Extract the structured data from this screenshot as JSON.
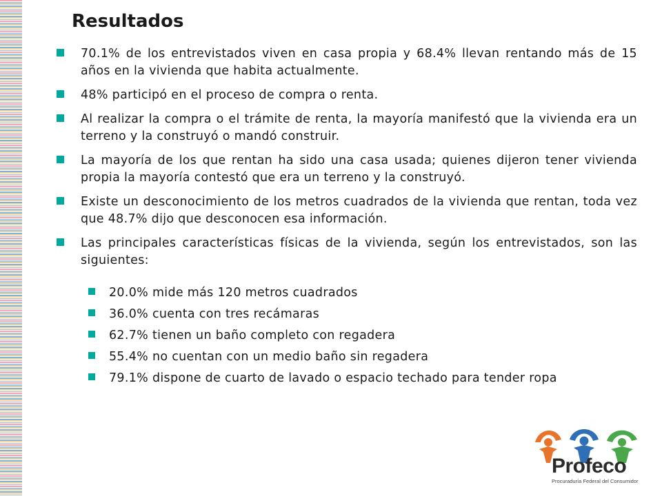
{
  "slide": {
    "title": "Resultados",
    "bullets": [
      "70.1% de los entrevistados viven en casa propia y 68.4% llevan rentando más de 15 años en la vivienda que habita actualmente.",
      "48% participó en el proceso de compra o renta.",
      "Al realizar la compra o el trámite de renta, la mayoría manifestó que la vivienda era un terreno y la construyó o mandó construir.",
      "La mayoría de los que rentan ha sido una casa usada; quienes dijeron tener vivienda propia la mayoría contestó que era un terreno y la construyó.",
      "Existe un desconocimiento de los metros cuadrados de la vivienda que rentan, toda vez que 48.7% dijo que desconocen esa información.",
      "Las principales características físicas de la vivienda, según los entrevistados, son las siguientes:"
    ],
    "sub_bullets": [
      "20.0% mide más 120 metros cuadrados",
      "36.0% cuenta con tres recámaras",
      "62.7% tienen un baño completo con regadera",
      "55.4% no cuentan con un medio baño sin regadera",
      "79.1% dispone de cuarto de lavado o espacio techado para tender ropa"
    ]
  },
  "logo": {
    "name": "Profeco",
    "subtitle": "Procuraduría Federal del Consumidor",
    "colors": [
      "#e8732a",
      "#2f6fb5",
      "#4aa84a"
    ]
  },
  "theme": {
    "bullet_color": "#00a99d"
  }
}
